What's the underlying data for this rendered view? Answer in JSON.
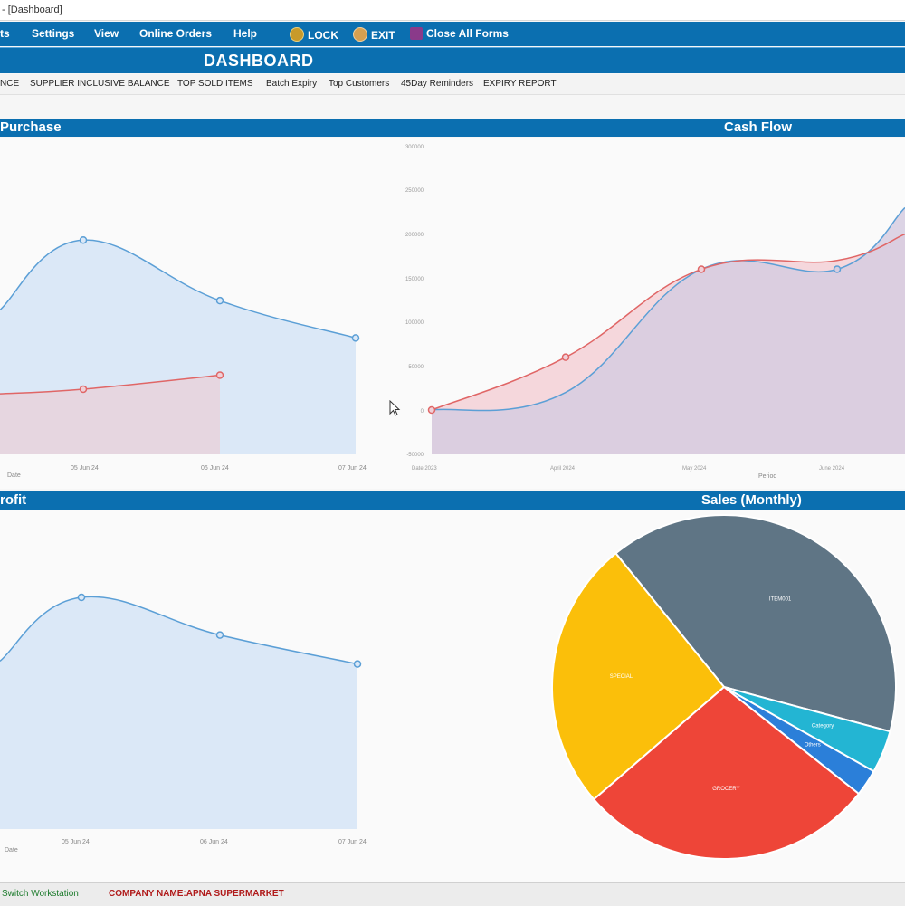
{
  "window": {
    "title": "- [Dashboard]"
  },
  "menu": {
    "items": [
      "ts",
      "Settings",
      "View",
      "Online Orders",
      "Help"
    ],
    "lock": "LOCK",
    "exit": "EXIT",
    "close_all": "Close All Forms"
  },
  "dashboard": {
    "title": "DASHBOARD"
  },
  "tabs": [
    "NCE",
    "SUPPLIER INCLUSIVE BALANCE",
    "TOP SOLD ITEMS",
    "Batch Expiry",
    "Top Customers",
    "45Day Reminders",
    "EXPIRY REPORT"
  ],
  "sections": {
    "purchase": "Purchase",
    "cash_flow": "Cash Flow",
    "profit": "rofit",
    "sales_monthly": "Sales (Monthly)"
  },
  "purchase_chart": {
    "xlabel": "Date",
    "x_ticks": [
      "05 Jun 24",
      "06 Jun 24",
      "07 Jun 24"
    ]
  },
  "cash_chart": {
    "xlabel": "Period",
    "y_ticks": [
      "-50000",
      "0",
      "50000",
      "100000",
      "150000",
      "200000",
      "250000",
      "300000"
    ],
    "x_ticks": [
      "Date 2023",
      "April 2024",
      "May 2024",
      "June 2024"
    ]
  },
  "profit_chart": {
    "xlabel": "Date",
    "x_ticks": [
      "05 Jun 24",
      "06 Jun 24",
      "07 Jun 24"
    ]
  },
  "pie_labels": [
    "ITEM001",
    "Category",
    "Others",
    "GROCERY",
    "SPECIAL"
  ],
  "status": {
    "left": "Switch Workstation",
    "company": "COMPANY NAME:APNA SUPERMARKET"
  },
  "colors": {
    "header_blue": "#0b6fb0",
    "series_blue": "#5b9fd6",
    "series_red": "#e06666",
    "pie_slate": "#5f7585",
    "pie_teal": "#23b5d3",
    "pie_blue": "#2b7fd9",
    "pie_red": "#ee4538",
    "pie_yellow": "#fbbf0a"
  },
  "chart_data": [
    {
      "type": "area",
      "title": "Purchase",
      "xlabel": "Date",
      "categories": [
        "",
        "05 Jun 24",
        "06 Jun 24",
        "07 Jun 24"
      ],
      "series": [
        {
          "values": [
            155000,
            230000,
            165000,
            125000
          ]
        },
        {
          "values": [
            65000,
            70000,
            85000,
            null
          ]
        }
      ]
    },
    {
      "type": "area",
      "title": "Cash Flow",
      "xlabel": "Period",
      "ylim": [
        -50000,
        300000
      ],
      "categories": [
        "Date 2023",
        "April 2024",
        "May 2024",
        "June 2024",
        ""
      ],
      "series": [
        {
          "values": [
            0,
            20000,
            160000,
            160000,
            230000
          ]
        },
        {
          "values": [
            0,
            60000,
            160000,
            170000,
            200000
          ]
        }
      ]
    },
    {
      "type": "area",
      "title": "Profit",
      "xlabel": "Date",
      "categories": [
        "",
        "05 Jun 24",
        "06 Jun 24",
        "07 Jun 24"
      ],
      "series": [
        {
          "values": [
            58000,
            80000,
            67000,
            57000
          ]
        }
      ]
    },
    {
      "type": "pie",
      "title": "Sales (Monthly)",
      "labels": [
        "ITEM001",
        "Category",
        "Others",
        "GROCERY",
        "SPECIAL"
      ],
      "values": [
        40,
        4,
        2.5,
        28,
        25.5
      ]
    }
  ]
}
